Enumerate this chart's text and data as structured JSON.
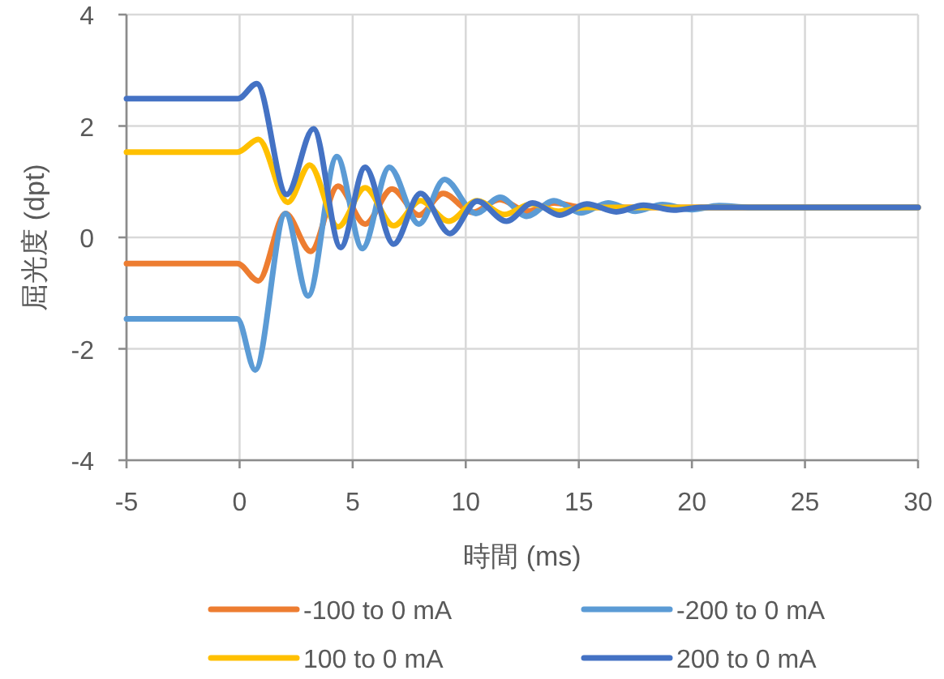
{
  "chart_data": {
    "type": "line",
    "xlabel": "時間 (ms)",
    "ylabel": "屈光度 (dpt)",
    "xlim": [
      -5,
      30
    ],
    "xticks": [
      -5,
      0,
      5,
      10,
      15,
      20,
      25,
      30
    ],
    "ylim": [
      -4,
      4
    ],
    "yticks": [
      -4,
      -2,
      0,
      2,
      4
    ],
    "grid": true,
    "legend": "bottom",
    "line_style": "solid",
    "series": [
      {
        "name": "-100 to 0 mA",
        "color": "#ed7d31",
        "x": [
          -5,
          -0.1,
          0.83,
          2.03,
          3.15,
          4.35,
          5.55,
          6.74,
          7.93,
          9.0,
          10.3,
          11.5,
          12.7,
          13.9,
          15.2,
          30
        ],
        "values": [
          -0.47,
          -0.47,
          -0.78,
          0.43,
          -0.25,
          0.92,
          0.24,
          0.87,
          0.4,
          0.79,
          0.45,
          0.68,
          0.47,
          0.62,
          0.54,
          0.54
        ]
      },
      {
        "name": "-200 to 0 mA",
        "color": "#5b9bd5",
        "x": [
          -5,
          -0.1,
          0.69,
          2.03,
          3.03,
          4.3,
          5.43,
          6.62,
          7.93,
          9.06,
          10.45,
          11.52,
          12.7,
          13.9,
          15.1,
          16.3,
          17.5,
          18.7,
          20.0,
          21.2,
          22.5,
          30
        ],
        "values": [
          -1.46,
          -1.46,
          -2.38,
          0.43,
          -1.05,
          1.45,
          -0.2,
          1.26,
          0.24,
          1.04,
          0.43,
          0.72,
          0.38,
          0.66,
          0.44,
          0.62,
          0.47,
          0.59,
          0.5,
          0.57,
          0.54,
          0.54
        ]
      },
      {
        "name": "100 to 0 mA",
        "color": "#ffc000",
        "x": [
          -5,
          -0.1,
          0.83,
          2.13,
          3.1,
          4.35,
          5.55,
          6.81,
          8.0,
          9.25,
          10.5,
          11.7,
          12.9,
          14.1,
          15.3,
          30
        ],
        "values": [
          1.53,
          1.53,
          1.76,
          0.63,
          1.3,
          0.19,
          0.89,
          0.21,
          0.66,
          0.29,
          0.66,
          0.41,
          0.6,
          0.47,
          0.54,
          0.54
        ]
      },
      {
        "name": "200 to 0 mA",
        "color": "#4472c4",
        "x": [
          -5,
          -0.07,
          0.76,
          2.08,
          3.27,
          4.47,
          5.55,
          6.81,
          8.0,
          9.3,
          10.5,
          11.8,
          12.96,
          14.15,
          15.35,
          16.66,
          17.86,
          19.2,
          20.4,
          30
        ],
        "values": [
          2.49,
          2.49,
          2.76,
          0.77,
          1.95,
          -0.18,
          1.26,
          -0.12,
          0.79,
          0.07,
          0.65,
          0.29,
          0.62,
          0.4,
          0.6,
          0.46,
          0.58,
          0.49,
          0.54,
          0.54
        ]
      }
    ]
  }
}
